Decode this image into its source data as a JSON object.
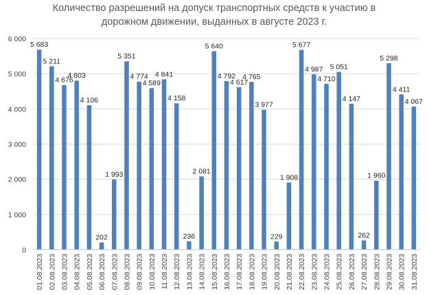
{
  "chart_data": {
    "type": "bar",
    "title": [
      "Количество разрешений на допуск транспортных средств к участию в",
      "дорожном движении, выданных в августе 2023 г."
    ],
    "xlabel": "",
    "ylabel": "",
    "ylim": [
      0,
      6000
    ],
    "yticks": [
      0,
      1000,
      2000,
      3000,
      4000,
      5000,
      6000
    ],
    "ytick_labels": [
      "0",
      "1 000",
      "2 000",
      "3 000",
      "4 000",
      "5 000",
      "6 000"
    ],
    "grid": true,
    "legend": "none",
    "bar_color": "#4f81bd",
    "categories": [
      "01.08.2023",
      "02.08.2023",
      "03.08.2023",
      "04.08.2023",
      "05.08.2023",
      "06.08.2023",
      "07.08.2023",
      "08.08.2023",
      "09.08.2023",
      "10.08.2023",
      "11.08.2023",
      "12.08.2023",
      "13.08.2023",
      "14.08.2023",
      "15.08.2023",
      "16.08.2023",
      "17.08.2023",
      "18.08.2023",
      "19.08.2023",
      "20.08.2023",
      "21.08.2023",
      "22.08.2023",
      "23.08.2023",
      "24.08.2023",
      "25.08.2023",
      "26.08.2023",
      "27.08.2023",
      "28.08.2023",
      "29.08.2023",
      "30.08.2023",
      "31.08.2023"
    ],
    "values": [
      5683,
      5211,
      4676,
      4803,
      4106,
      202,
      1993,
      5351,
      4774,
      4589,
      4841,
      4158,
      236,
      2081,
      5640,
      4792,
      4617,
      4765,
      3977,
      229,
      1908,
      5677,
      4987,
      4710,
      5051,
      4147,
      262,
      1960,
      5298,
      4411,
      4067
    ],
    "value_labels": [
      "5 683",
      "5 211",
      "4 676",
      "4 803",
      "4 106",
      "202",
      "1 993",
      "5 351",
      "4 774",
      "4 589",
      "4 841",
      "4 158",
      "236",
      "2 081",
      "5 640",
      "4 792",
      "4 617",
      "4 765",
      "3 977",
      "229",
      "1 908",
      "5 677",
      "4 987",
      "4 710",
      "5 051",
      "4 147",
      "262",
      "1 960",
      "5 298",
      "4 411",
      "4 067"
    ]
  }
}
